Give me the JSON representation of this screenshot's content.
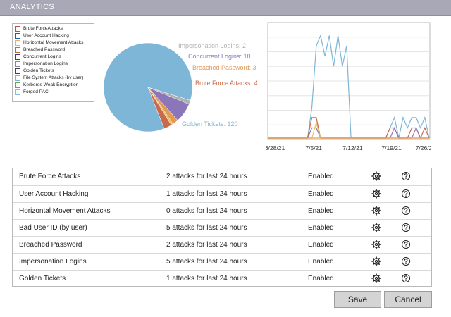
{
  "header": {
    "title": "ANALYTICS"
  },
  "legend": {
    "items": [
      {
        "label": "Brute ForceAttacks",
        "color": "#c0504d"
      },
      {
        "label": "User Account Hacking",
        "color": "#1f5fa8"
      },
      {
        "label": "Horizontal Movement Attacks",
        "color": "#e8b15a"
      },
      {
        "label": "Breached Password",
        "color": "#c5682f"
      },
      {
        "label": "Concurrent Logins",
        "color": "#3b3b8f"
      },
      {
        "label": "Impersonation Logins",
        "color": "#8a8a8a"
      },
      {
        "label": "Golden Tickets",
        "color": "#4a3a6a"
      },
      {
        "label": "File System Attacks (by user)",
        "color": "#7fb3d5"
      },
      {
        "label": "Kerberos Weak Encryption",
        "color": "#6aa84f"
      },
      {
        "label": "Forged PAC",
        "color": "#7ec0e0"
      }
    ]
  },
  "chart_data": [
    {
      "type": "pie",
      "slices": [
        {
          "label": "Golden Tickets",
          "value": 120,
          "color": "#7db6d6",
          "text": "Golden Tickets: 120"
        },
        {
          "label": "Brute Force Attacks",
          "value": 4,
          "color": "#c96a4a",
          "text": "Brute Force Attacks: 4"
        },
        {
          "label": "Horizontal Movement Attacks",
          "value": 1,
          "color": "#e6c35c",
          "text": ""
        },
        {
          "label": "Breached Password",
          "value": 3,
          "color": "#e39a58",
          "text": "Breached Password: 3"
        },
        {
          "label": "Concurrent Logins",
          "value": 10,
          "color": "#8a76b8",
          "text": "Concurrent Logins: 10"
        },
        {
          "label": "Impersonation Logins",
          "value": 2,
          "color": "#b0b0b0",
          "text": "Impersonation Logins: 2"
        }
      ]
    },
    {
      "type": "line",
      "x_ticks": [
        "6/28/21",
        "7/5/21",
        "7/12/21",
        "7/19/21",
        "7/26/21"
      ],
      "ylim": [
        0,
        11
      ],
      "grid": true,
      "series": [
        {
          "color": "#7db6d6",
          "values": [
            0,
            0,
            0,
            0,
            0,
            0,
            0,
            0,
            0,
            0,
            3,
            9,
            10,
            8,
            10,
            7,
            10,
            7,
            9,
            0,
            0,
            0,
            0,
            0,
            0,
            0,
            0,
            0,
            1,
            2,
            0,
            2,
            1,
            2,
            2,
            1,
            2,
            0
          ]
        },
        {
          "color": "#c96a4a",
          "values": [
            0,
            0,
            0,
            0,
            0,
            0,
            0,
            0,
            0,
            0,
            2,
            2,
            0,
            0,
            0,
            0,
            0,
            0,
            0,
            0,
            0,
            0,
            0,
            0,
            0,
            0,
            0,
            0,
            1,
            1,
            0,
            0,
            0,
            1,
            1,
            0,
            1,
            0
          ]
        },
        {
          "color": "#8a76b8",
          "values": [
            0,
            0,
            0,
            0,
            0,
            0,
            0,
            0,
            0,
            0,
            1,
            1,
            0,
            0,
            0,
            0,
            0,
            0,
            0,
            0,
            0,
            0,
            0,
            0,
            0,
            0,
            0,
            0,
            0,
            1,
            0,
            0,
            0,
            0,
            1,
            0,
            0,
            0
          ]
        },
        {
          "color": "#e6c35c",
          "values": [
            0,
            0,
            0,
            0,
            0,
            0,
            0,
            0,
            0,
            0,
            0,
            1.5,
            0,
            0,
            0,
            0,
            0,
            0,
            0,
            0,
            0,
            0,
            0,
            0,
            0,
            0,
            0,
            0,
            0,
            0,
            0,
            0,
            0,
            0,
            0,
            0,
            0,
            0
          ]
        },
        {
          "color": "#e39a58",
          "values": [
            0,
            0,
            0,
            0,
            0,
            0,
            0,
            0,
            0,
            0,
            0,
            0,
            0,
            0,
            0,
            0,
            0,
            0,
            0,
            0,
            0,
            0,
            0,
            0,
            0,
            0,
            0,
            0,
            0,
            0,
            0,
            0,
            0,
            0,
            0,
            0,
            0,
            0
          ]
        }
      ]
    }
  ],
  "table": {
    "rows": [
      {
        "name": "Brute Force Attacks",
        "count": "2 attacks for last 24 hours",
        "status": "Enabled"
      },
      {
        "name": "User Account Hacking",
        "count": "1 attacks for last 24 hours",
        "status": "Enabled"
      },
      {
        "name": "Horizontal Movement Attacks",
        "count": "0 attacks for last 24 hours",
        "status": "Enabled"
      },
      {
        "name": "Bad User ID (by user)",
        "count": "5 attacks for last 24 hours",
        "status": "Enabled"
      },
      {
        "name": "Breached Password",
        "count": "2 attacks for last 24 hours",
        "status": "Enabled"
      },
      {
        "name": "Impersonation Logins",
        "count": "5 attacks for last 24 hours",
        "status": "Enabled"
      },
      {
        "name": "Golden Tickets",
        "count": "1 attacks for last 24 hours",
        "status": "Enabled"
      }
    ],
    "gear_icon": "gear-icon",
    "help_icon": "help-circle-icon"
  },
  "buttons": {
    "save_label": "Save",
    "cancel_label": "Cancel"
  }
}
